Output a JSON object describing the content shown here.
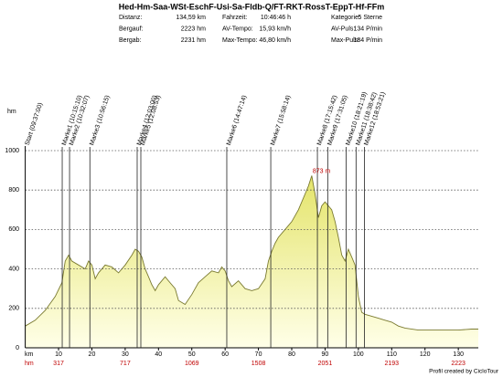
{
  "title": "Hed-Hm-Saa-WSt-EschF-Usi-Sa-Fldb-Q/FT-RKT-RossT-EppT-Hf-FFm",
  "stats": [
    [
      "Distanz:",
      "134,59 km",
      "Fahrzeit:",
      "10:46:46 h",
      "Kategorie:",
      "5 Sterne"
    ],
    [
      "Bergauf:",
      "2223 hm",
      "AV-Tempo:",
      "15,93 km/h",
      "AV-Puls:",
      "134 P/min"
    ],
    [
      "Bergab:",
      "2231 hm",
      "Max-Tempo:",
      "46,80 km/h",
      "Max-Puls:",
      "184 P/min"
    ]
  ],
  "footer": "Profil created by CicloTour",
  "chart_data": {
    "type": "area",
    "y_unit": "hm",
    "x_unit": "km",
    "color": "#eeee88",
    "line_color": "#7a7a30",
    "x": [
      0,
      3,
      6,
      9,
      11,
      12,
      13,
      14,
      16,
      18,
      19,
      20,
      21,
      22,
      24,
      26,
      28,
      30,
      32,
      33,
      34,
      35,
      36,
      37,
      38,
      39,
      40,
      42,
      43,
      45,
      46,
      48,
      50,
      52,
      54,
      56,
      58,
      59,
      60,
      61,
      62,
      64,
      66,
      68,
      70,
      72,
      73,
      74,
      75,
      76,
      78,
      80,
      82,
      84,
      85,
      86,
      87,
      88,
      89,
      90,
      91,
      92,
      93,
      94,
      95,
      96,
      97,
      98,
      99,
      100,
      101,
      102,
      104,
      106,
      108,
      110,
      112,
      114,
      118,
      122,
      126,
      130,
      134,
      136
    ],
    "values": [
      110,
      140,
      190,
      260,
      330,
      440,
      470,
      440,
      420,
      400,
      440,
      420,
      350,
      380,
      420,
      410,
      380,
      420,
      470,
      500,
      490,
      460,
      400,
      360,
      320,
      290,
      320,
      360,
      340,
      300,
      240,
      220,
      270,
      330,
      360,
      390,
      380,
      410,
      390,
      340,
      310,
      340,
      300,
      290,
      300,
      350,
      440,
      490,
      530,
      560,
      600,
      640,
      700,
      780,
      820,
      873,
      780,
      660,
      720,
      740,
      720,
      700,
      640,
      560,
      470,
      440,
      500,
      460,
      420,
      260,
      180,
      170,
      160,
      150,
      140,
      130,
      110,
      100,
      90,
      90,
      90,
      90,
      95,
      95
    ],
    "xlim": [
      0,
      136
    ],
    "ylim": [
      0,
      1000
    ],
    "xticks": [
      10,
      20,
      30,
      40,
      50,
      60,
      70,
      80,
      90,
      100,
      110,
      120,
      130
    ],
    "yticks": [
      0,
      200,
      400,
      600,
      800,
      1000
    ],
    "grid": true,
    "peak_annotation": {
      "label": "873 m",
      "x": 86,
      "y": 873
    },
    "markers": [
      {
        "label": "Start (09:37:00)",
        "x": 0
      },
      {
        "label": "Marke1 (10:15:10)",
        "x": 11.1
      },
      {
        "label": "Marke2 (10:32:07)",
        "x": 13.3
      },
      {
        "label": "Marke3 (10:56:15)",
        "x": 19.4
      },
      {
        "label": "Marke4 (12:03:00)",
        "x": 33.6
      },
      {
        "label": "Marke5 (12:08:53)",
        "x": 34.7
      },
      {
        "label": "Marke6 (14:47:14)",
        "x": 60.5
      },
      {
        "label": "Marke7 (15:58:14)",
        "x": 73.7
      },
      {
        "label": "Marke8 (17:15:42)",
        "x": 87.7
      },
      {
        "label": "Marke9 (17:31:05)",
        "x": 90.8
      },
      {
        "label": "Marke10 (18:21:19)",
        "x": 96.3
      },
      {
        "label": "Marke11 (18:38:42)",
        "x": 99.3
      },
      {
        "label": "Marke12 (18:53:21)",
        "x": 101.8
      }
    ],
    "climb_label": "hm",
    "climb_ticks": [
      {
        "value": 10,
        "label": "317"
      },
      {
        "value": 30,
        "label": "717"
      },
      {
        "value": 50,
        "label": "1069"
      },
      {
        "value": 70,
        "label": "1508"
      },
      {
        "value": 90,
        "label": "2051"
      },
      {
        "value": 110,
        "label": "2193"
      },
      {
        "value": 130,
        "label": "2223"
      }
    ]
  }
}
